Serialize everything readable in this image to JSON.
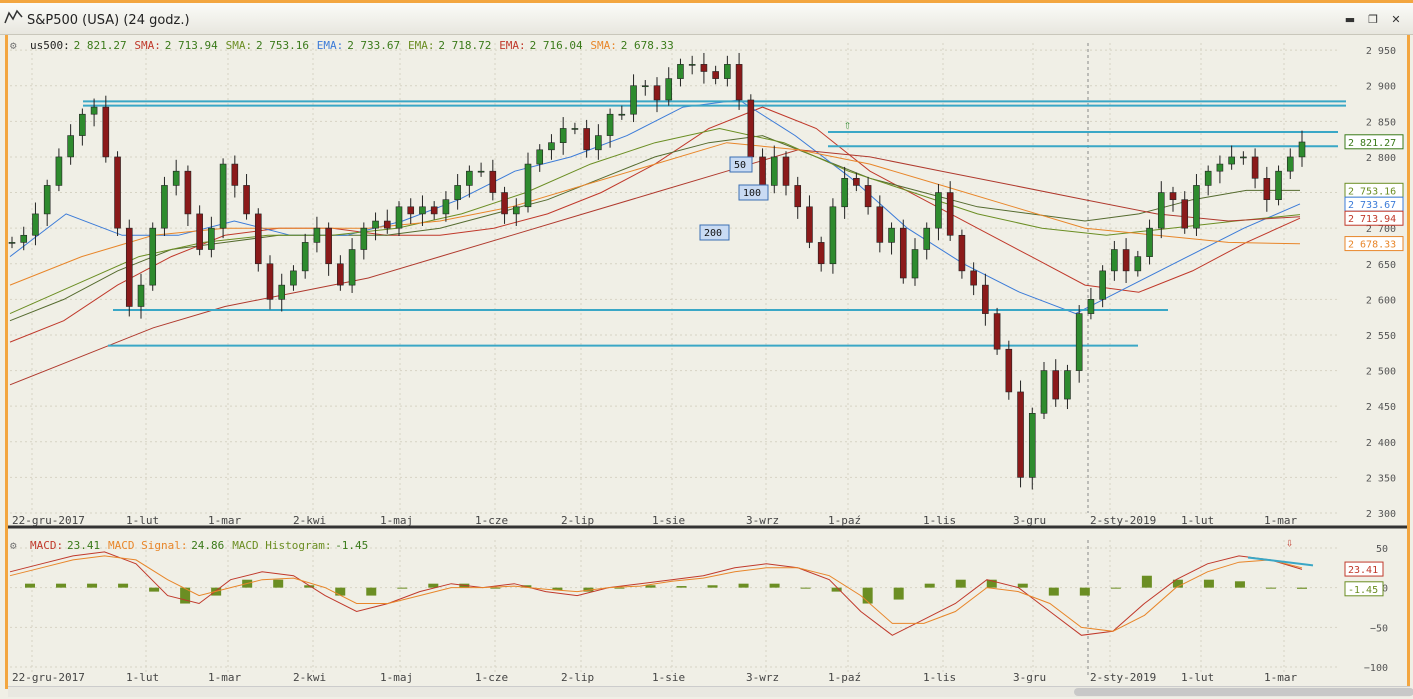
{
  "window": {
    "title": "S&P500 (USA) (24 godz.)",
    "controls": [
      "minimize",
      "restore",
      "close"
    ]
  },
  "legend": {
    "main": [
      {
        "label": "us500:",
        "value": "2 821.27",
        "color": "#222222"
      },
      {
        "label": "SMA:",
        "value": "2 713.94",
        "color": "#c0392b"
      },
      {
        "label": "SMA:",
        "value": "2 753.16",
        "color": "#6b8e23"
      },
      {
        "label": "EMA:",
        "value": "2 733.67",
        "color": "#3b7bd8"
      },
      {
        "label": "EMA:",
        "value": "2 718.72",
        "color": "#6b8e23"
      },
      {
        "label": "EMA:",
        "value": "2 716.04",
        "color": "#c0392b"
      },
      {
        "label": "SMA:",
        "value": "2 678.33",
        "color": "#e8862a"
      }
    ],
    "macd": [
      {
        "label": "MACD:",
        "value": "23.41",
        "color": "#c0392b"
      },
      {
        "label": "MACD Signal:",
        "value": "24.86",
        "color": "#e8862a"
      },
      {
        "label": "MACD Histogram:",
        "value": "-1.45",
        "color": "#6b8e23"
      }
    ]
  },
  "x_axis_labels": [
    "22-gru-2017",
    "1-lut",
    "1-mar",
    "2-kwi",
    "1-maj",
    "1-cze",
    "2-lip",
    "1-sie",
    "3-wrz",
    "1-paź",
    "1-lis",
    "3-gru",
    "2-sty-2019",
    "1-lut",
    "1-mar"
  ],
  "price_axis_labels": [
    "2 950",
    "2 900",
    "2 850",
    "2 800",
    "2 750",
    "2 700",
    "2 650",
    "2 600",
    "2 550",
    "2 500",
    "2 450",
    "2 400",
    "2 350",
    "2 300"
  ],
  "macd_axis_labels": [
    "50",
    "0",
    "−50",
    "−100"
  ],
  "price_tags": [
    {
      "value": "2 821.27",
      "color": "#3a7a1a"
    },
    {
      "value": "2 753.16",
      "color": "#6b8e23"
    },
    {
      "value": "2 733.67",
      "color": "#3b7bd8"
    },
    {
      "value": "2 713.94",
      "color": "#c0392b"
    },
    {
      "value": "2 678.33",
      "color": "#e8862a"
    }
  ],
  "macd_tags": [
    {
      "value": "23.41",
      "color": "#c0392b"
    },
    {
      "value": "-1.45",
      "color": "#6b8e23"
    }
  ],
  "ma_labels": [
    "50",
    "100",
    "200"
  ],
  "chart_data": [
    {
      "type": "line",
      "title": "S&P500 (USA) (24 godz.)",
      "xlabel": "",
      "ylabel": "",
      "ylim": [
        2300,
        2960
      ],
      "x_ticks": [
        "22-gru-2017",
        "1-lut",
        "1-mar",
        "2-kwi",
        "1-maj",
        "1-cze",
        "2-lip",
        "1-sie",
        "3-wrz",
        "1-paź",
        "1-lis",
        "3-gru",
        "2-sty-2019",
        "1-lut",
        "1-mar"
      ],
      "grid": true,
      "series": [
        {
          "name": "us500",
          "type": "candlestick-close",
          "values": [
            2680,
            2690,
            2720,
            2760,
            2800,
            2830,
            2860,
            2870,
            2800,
            2700,
            2590,
            2620,
            2700,
            2760,
            2780,
            2720,
            2670,
            2700,
            2790,
            2760,
            2720,
            2650,
            2600,
            2620,
            2640,
            2680,
            2700,
            2650,
            2620,
            2670,
            2700,
            2710,
            2700,
            2730,
            2720,
            2730,
            2720,
            2740,
            2760,
            2780,
            2780,
            2750,
            2720,
            2730,
            2790,
            2810,
            2820,
            2840,
            2840,
            2810,
            2830,
            2860,
            2860,
            2900,
            2900,
            2880,
            2910,
            2930,
            2930,
            2920,
            2910,
            2930,
            2880,
            2800,
            2760,
            2800,
            2760,
            2730,
            2680,
            2650,
            2730,
            2770,
            2760,
            2730,
            2680,
            2700,
            2630,
            2670,
            2700,
            2750,
            2690,
            2640,
            2620,
            2580,
            2530,
            2470,
            2350,
            2440,
            2500,
            2460,
            2500,
            2580,
            2600,
            2640,
            2670,
            2640,
            2660,
            2700,
            2750,
            2740,
            2700,
            2760,
            2780,
            2790,
            2800,
            2800,
            2770,
            2740,
            2780,
            2800,
            2821
          ]
        },
        {
          "name": "SMA",
          "values": [
            2540,
            2570,
            2620,
            2660,
            2690,
            2700,
            2700,
            2690,
            2690,
            2700,
            2720,
            2750,
            2790,
            2840,
            2870,
            2840,
            2780,
            2740,
            2700,
            2660,
            2620,
            2610,
            2640,
            2680,
            2714
          ]
        },
        {
          "name": "SMA",
          "values": [
            2570,
            2600,
            2640,
            2670,
            2680,
            2690,
            2690,
            2690,
            2700,
            2720,
            2740,
            2770,
            2800,
            2820,
            2830,
            2800,
            2770,
            2750,
            2730,
            2720,
            2710,
            2720,
            2740,
            2753,
            2753
          ]
        },
        {
          "name": "EMA",
          "values": [
            2660,
            2720,
            2690,
            2690,
            2710,
            2690,
            2690,
            2710,
            2740,
            2780,
            2800,
            2830,
            2870,
            2880,
            2830,
            2770,
            2700,
            2650,
            2610,
            2580,
            2620,
            2660,
            2700,
            2734
          ]
        },
        {
          "name": "EMA",
          "values": [
            2580,
            2620,
            2660,
            2680,
            2690,
            2690,
            2700,
            2720,
            2750,
            2790,
            2820,
            2840,
            2820,
            2780,
            2750,
            2720,
            2700,
            2690,
            2700,
            2710,
            2719
          ]
        },
        {
          "name": "EMA",
          "values": [
            2480,
            2520,
            2560,
            2590,
            2610,
            2630,
            2660,
            2690,
            2720,
            2750,
            2780,
            2810,
            2800,
            2780,
            2760,
            2740,
            2720,
            2710,
            2716
          ]
        },
        {
          "name": "SMA",
          "values": [
            2620,
            2660,
            2690,
            2700,
            2700,
            2700,
            2710,
            2730,
            2760,
            2790,
            2820,
            2810,
            2790,
            2760,
            2730,
            2700,
            2690,
            2680,
            2678
          ]
        }
      ],
      "annotations": {
        "horizontal_levels": [
          2878,
          2872,
          2835,
          2815,
          2585,
          2535
        ]
      }
    },
    {
      "type": "bar",
      "title": "MACD",
      "ylim": [
        -110,
        60
      ],
      "series": [
        {
          "name": "MACD",
          "values": [
            20,
            30,
            40,
            45,
            30,
            -10,
            -20,
            10,
            20,
            15,
            -10,
            -30,
            -20,
            -5,
            5,
            0,
            5,
            -5,
            -10,
            0,
            5,
            10,
            15,
            25,
            30,
            25,
            10,
            -30,
            -60,
            -40,
            -20,
            10,
            0,
            -30,
            -60,
            -55,
            -20,
            10,
            30,
            40,
            35,
            23
          ]
        },
        {
          "name": "MACD Signal",
          "values": [
            15,
            25,
            35,
            40,
            35,
            10,
            -10,
            0,
            10,
            12,
            0,
            -20,
            -20,
            -10,
            0,
            0,
            2,
            -2,
            -5,
            0,
            2,
            8,
            12,
            20,
            25,
            25,
            15,
            -10,
            -45,
            -45,
            -30,
            0,
            -5,
            -20,
            -50,
            -55,
            -35,
            0,
            20,
            32,
            35,
            25
          ]
        },
        {
          "name": "MACD Histogram",
          "values": [
            5,
            5,
            5,
            5,
            -5,
            -20,
            -10,
            10,
            10,
            3,
            -10,
            -10,
            0,
            5,
            5,
            0,
            3,
            -3,
            -5,
            0,
            3,
            2,
            3,
            5,
            5,
            0,
            -5,
            -20,
            -15,
            5,
            10,
            10,
            5,
            -10,
            -10,
            0,
            15,
            10,
            10,
            8,
            0,
            -1.45
          ]
        }
      ]
    }
  ]
}
